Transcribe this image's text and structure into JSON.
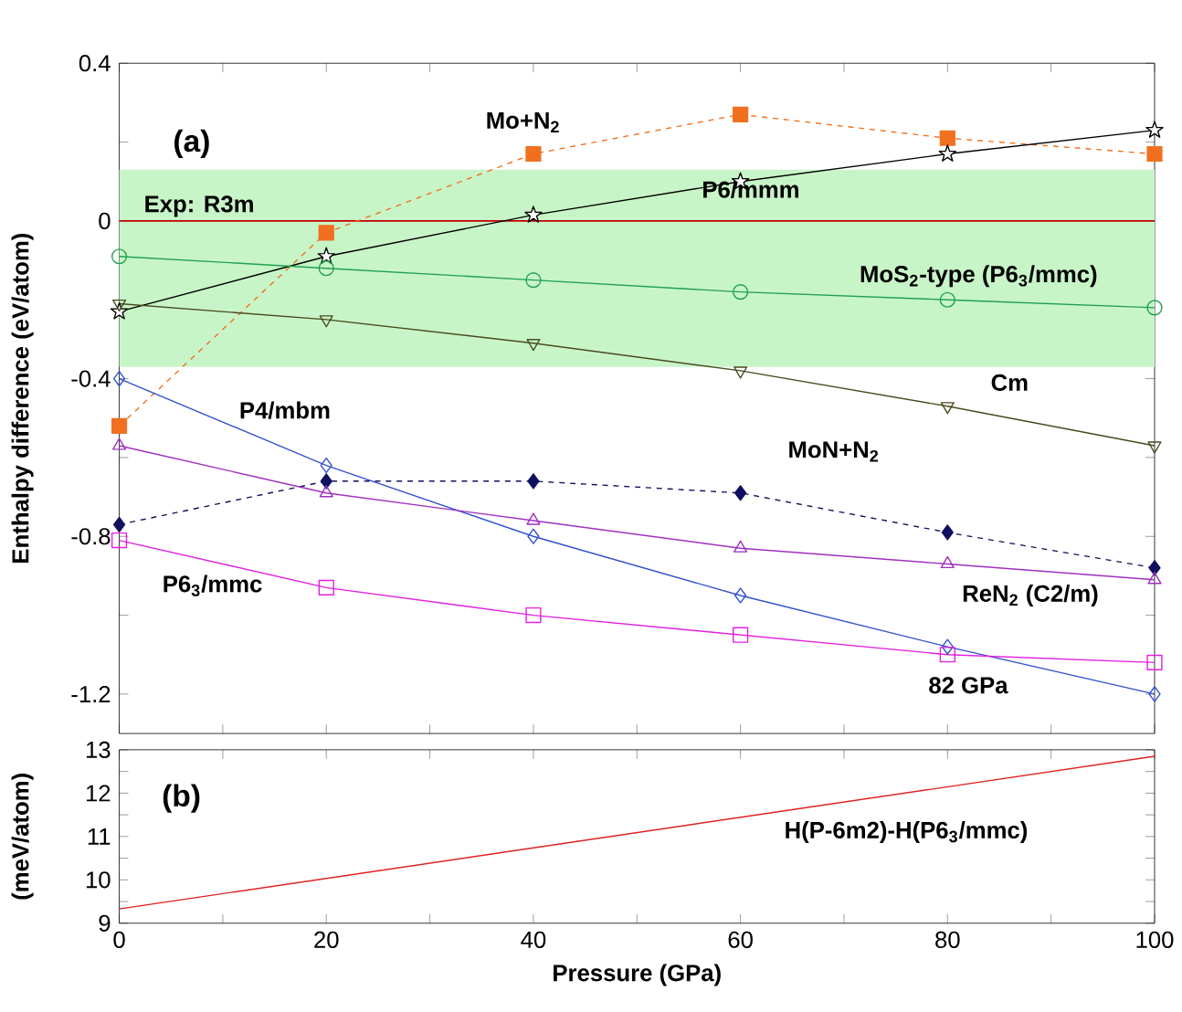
{
  "chart_data": [
    {
      "type": "line",
      "ylabel": "Enthalpy difference (eV/atom)",
      "annotations": [
        "(a)",
        {
          "text": "82 GPa",
          "x": 82,
          "y": -1.09
        }
      ],
      "x": [
        0,
        20,
        40,
        60,
        80,
        100
      ],
      "xlim": [
        0,
        100
      ],
      "ylim": [
        -1.3,
        0.4
      ],
      "tick_labels": "y",
      "xticks": [
        {
          "value": 0,
          "label": null
        },
        {
          "value": 10,
          "label": null
        },
        {
          "value": 20,
          "label": null
        },
        {
          "value": 30,
          "label": null
        },
        {
          "value": 40,
          "label": null
        },
        {
          "value": 50,
          "label": null
        },
        {
          "value": 60,
          "label": null
        },
        {
          "value": 70,
          "label": null
        },
        {
          "value": 80,
          "label": null
        },
        {
          "value": 90,
          "label": null
        },
        {
          "value": 100,
          "label": null
        }
      ],
      "yticks": [
        -1.2,
        {
          "value": -1.0,
          "label": null
        },
        -0.8,
        {
          "value": -0.6,
          "label": null
        },
        -0.4,
        {
          "value": -0.2,
          "label": null
        },
        0,
        {
          "value": 0.2,
          "label": null
        },
        0.4
      ],
      "ref_lines": [
        {
          "axis": "y",
          "value": 0,
          "label": "Exp: R3m",
          "color": "#c00000"
        }
      ],
      "bands": [
        {
          "axis": "y",
          "from": -0.37,
          "to": 0.13,
          "color": "#c8f5c8"
        }
      ],
      "series": [
        {
          "name": "Mo+N$_{2}$",
          "color": "#f07020",
          "marker": "square",
          "line_style": "dashed",
          "values": [
            -0.52,
            -0.03,
            0.17,
            0.27,
            0.21,
            0.17
          ]
        },
        {
          "name": "P6/mmm",
          "color": "#000000",
          "marker": "star",
          "line_style": "solid",
          "values": [
            -0.23,
            -0.09,
            0.015,
            0.1,
            0.17,
            0.23
          ]
        },
        {
          "name": "MoS$_{2}$-type (P6$_{3}$/mmc)",
          "color": "#20a050",
          "marker": "circle",
          "line_style": "solid",
          "values": [
            -0.09,
            -0.12,
            -0.15,
            -0.18,
            -0.2,
            -0.22
          ]
        },
        {
          "name": "Cm",
          "color": "#4a4a20",
          "marker": "triangle-down",
          "line_style": "solid",
          "values": [
            -0.21,
            -0.25,
            -0.31,
            -0.38,
            -0.47,
            -0.57
          ]
        },
        {
          "name": "P4/mbm",
          "color": "#3050d0",
          "marker": "diamond",
          "line_style": "solid",
          "values": [
            -0.4,
            -0.62,
            -0.8,
            -0.95,
            -1.08,
            -1.2
          ]
        },
        {
          "name": "MoN+N$_{2}$",
          "color": "#101060",
          "marker": "diamond",
          "line_style": "dashed",
          "values": [
            -0.77,
            -0.66,
            -0.66,
            -0.69,
            -0.79,
            -0.88
          ]
        },
        {
          "name": "ReN$_{2}$ (C2/m)",
          "color": "#a030c0",
          "marker": "triangle",
          "line_style": "solid",
          "values": [
            -0.57,
            -0.69,
            -0.76,
            -0.83,
            -0.87,
            -0.91
          ]
        },
        {
          "name": "P6$_{3}$/mmc",
          "color": "#e020e0",
          "marker": "square",
          "line_style": "solid",
          "values": [
            -0.81,
            -0.93,
            -1.0,
            -1.05,
            -1.1,
            -1.12
          ]
        }
      ]
    },
    {
      "type": "line",
      "xlabel": "Pressure (GPa)",
      "ylabel": "(meV/atom)",
      "annotations": [
        "(b)"
      ],
      "x": [
        0,
        100
      ],
      "xlim": [
        0,
        100
      ],
      "ylim": [
        9,
        13
      ],
      "xticks": [
        0,
        {
          "value": 10,
          "label": null
        },
        20,
        {
          "value": 30,
          "label": null
        },
        40,
        {
          "value": 50,
          "label": null
        },
        60,
        {
          "value": 70,
          "label": null
        },
        80,
        {
          "value": 90,
          "label": null
        },
        100
      ],
      "yticks": [
        9,
        {
          "value": 9.5,
          "label": null
        },
        10,
        {
          "value": 10.5,
          "label": null
        },
        11,
        {
          "value": 11.5,
          "label": null
        },
        12,
        {
          "value": 12.5,
          "label": null
        },
        13
      ],
      "series": [
        {
          "name": "H(P-6m2)-H(P6$_{3}$/mmc)",
          "color": "#e02020",
          "marker": "none",
          "line_style": "solid",
          "values": [
            9.33,
            12.85
          ]
        }
      ]
    }
  ]
}
